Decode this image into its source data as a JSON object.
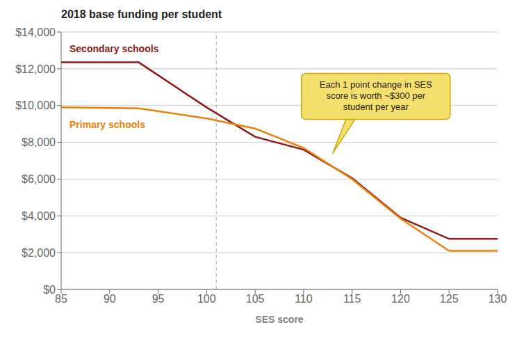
{
  "chart_data": {
    "type": "line",
    "title": "2018 base funding per student",
    "x_label": "SES score",
    "x": [
      85,
      93,
      100,
      105,
      110,
      115,
      120,
      125,
      130
    ],
    "series": [
      {
        "name": "Secondary schools",
        "color": "#8B1A1A",
        "values": [
          12350,
          12350,
          9900,
          8300,
          7600,
          6050,
          3900,
          2750,
          2750
        ]
      },
      {
        "name": "Primary schools",
        "color": "#E8820C",
        "values": [
          9900,
          9850,
          9300,
          8750,
          7700,
          6000,
          3850,
          2100,
          2100
        ]
      }
    ],
    "xlim": [
      85,
      130
    ],
    "ylim": [
      0,
      14000
    ],
    "xticks": [
      85,
      90,
      95,
      100,
      105,
      110,
      115,
      120,
      125,
      130
    ],
    "yticks": [
      {
        "value": 0,
        "label": "$0"
      },
      {
        "value": 2000,
        "label": "$2,000"
      },
      {
        "value": 4000,
        "label": "$4,000"
      },
      {
        "value": 6000,
        "label": "$6,000"
      },
      {
        "value": 8000,
        "label": "$8,000"
      },
      {
        "value": 10000,
        "label": "$10,000"
      },
      {
        "value": 12000,
        "label": "$12,000"
      },
      {
        "value": 14000,
        "label": "$14,000"
      }
    ],
    "grid": "y",
    "reference_lines": [
      {
        "x": 101,
        "color": "#aaaaaa",
        "line_style": "dashed"
      }
    ],
    "annotations": [
      {
        "text": "Each 1 point change in SES\nscore is worth ~$300 per\nstudent per year",
        "x": 113,
        "y": 7400,
        "color": "#F5E06E"
      }
    ]
  }
}
